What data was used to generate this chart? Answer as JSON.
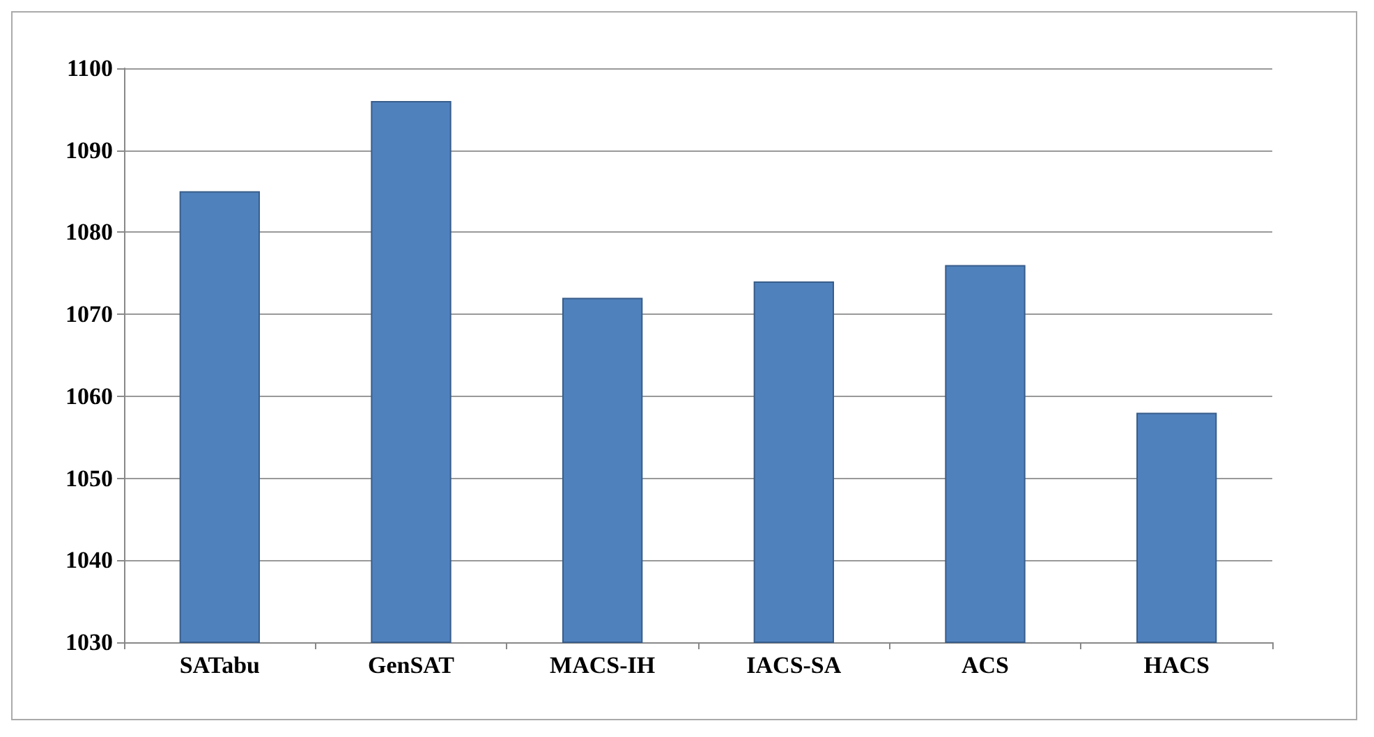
{
  "chart_data": {
    "type": "bar",
    "categories": [
      "SATabu",
      "GenSAT",
      "MACS-IH",
      "IACS-SA",
      "ACS",
      "HACS"
    ],
    "values": [
      1085,
      1096,
      1072,
      1074,
      1076,
      1058
    ],
    "color": "#4f81bd",
    "ylim": [
      1030,
      1100
    ],
    "yticks": [
      1030,
      1040,
      1050,
      1060,
      1070,
      1080,
      1090,
      1100
    ],
    "grid": "y"
  }
}
